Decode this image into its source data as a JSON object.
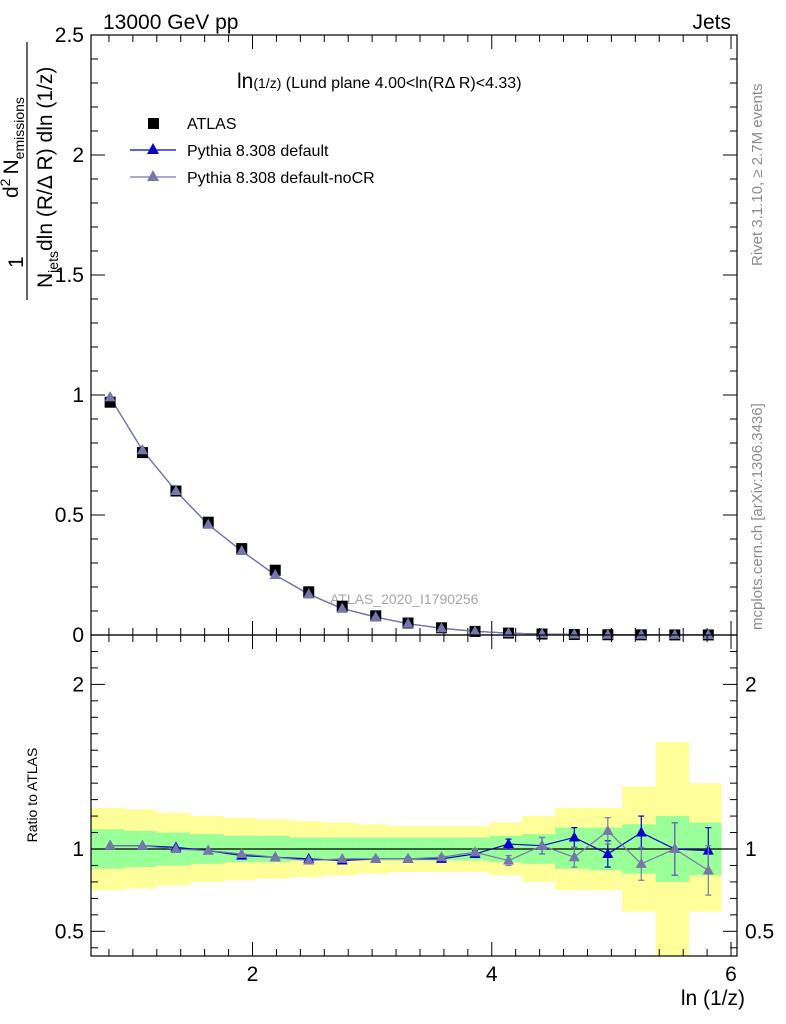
{
  "header": {
    "left": "13000 GeV pp",
    "right": "Jets"
  },
  "plot_title": {
    "main": "ln",
    "sub": "(1/z)",
    "rest": " (Lund plane 4.00<ln(RΔ R)<4.33)"
  },
  "watermark": "ATLAS_2020_I1790256",
  "side_texts": {
    "top": "Rivet 3.1.10, ≥ 2.7M events",
    "bottom": "mcplots.cern.ch [arXiv:1306.3436]"
  },
  "ylabel_main": {
    "one": "1",
    "njets": "N",
    "njets_sub": "jets",
    "denom": "dln (R/Δ R) dln (1/z)",
    "d2": "d",
    "d2_sup": "2",
    "numer": "N",
    "numer_sub": "emissions"
  },
  "ylabel_ratio": "Ratio to ATLAS",
  "xlabel": "ln (1/z)",
  "legend": [
    {
      "label": "ATLAS",
      "marker": "square",
      "color": "#000000"
    },
    {
      "label": "Pythia 8.308 default",
      "marker": "triangle",
      "color": "#0000cc"
    },
    {
      "label": "Pythia 8.308 default-noCR",
      "marker": "triangle",
      "color": "#7777aa"
    }
  ],
  "chart_data": {
    "type": "scatter",
    "x": [
      0.81,
      1.08,
      1.36,
      1.63,
      1.91,
      2.19,
      2.47,
      2.75,
      3.03,
      3.3,
      3.58,
      3.86,
      4.14,
      4.42,
      4.69,
      4.97,
      5.25,
      5.53,
      5.81
    ],
    "x_ticks": [
      2,
      4,
      6
    ],
    "xlim": [
      0.65,
      6.05
    ],
    "main": {
      "ylim": [
        0,
        2.5
      ],
      "y_ticks": [
        0,
        0.5,
        1,
        1.5,
        2,
        2.5
      ],
      "y_tick_labels": [
        "0",
        "0.5",
        "1",
        "1.5",
        "2",
        "2.5"
      ],
      "series": [
        {
          "name": "ATLAS",
          "values": [
            0.97,
            0.76,
            0.6,
            0.47,
            0.36,
            0.27,
            0.18,
            0.12,
            0.08,
            0.05,
            0.03,
            0.015,
            0.008,
            0.004,
            0.002,
            0.001,
            0.0006,
            0.0003,
            0.0002
          ]
        },
        {
          "name": "Pythia 8.308 default",
          "values": [
            0.99,
            0.77,
            0.6,
            0.46,
            0.35,
            0.25,
            0.17,
            0.11,
            0.075,
            0.047,
            0.028,
            0.015,
            0.008,
            0.004,
            0.002,
            0.001,
            0.0006,
            0.0003,
            0.0002
          ]
        },
        {
          "name": "Pythia 8.308 default-noCR",
          "values": [
            0.99,
            0.77,
            0.6,
            0.46,
            0.35,
            0.25,
            0.17,
            0.11,
            0.075,
            0.047,
            0.028,
            0.015,
            0.008,
            0.004,
            0.002,
            0.001,
            0.0006,
            0.0003,
            0.0002
          ]
        }
      ]
    },
    "ratio": {
      "ylim": [
        0.35,
        2.3
      ],
      "y_ticks": [
        0.5,
        1,
        2
      ],
      "y_tick_labels": [
        "0.5",
        "1",
        "2"
      ],
      "bin_edges": [
        0.65,
        0.93,
        1.2,
        1.48,
        1.76,
        2.03,
        2.31,
        2.59,
        2.87,
        3.14,
        3.42,
        3.7,
        3.98,
        4.25,
        4.53,
        4.81,
        5.09,
        5.37,
        5.65,
        5.92
      ],
      "band_inner": [
        [
          0.88,
          1.12
        ],
        [
          0.89,
          1.11
        ],
        [
          0.9,
          1.1
        ],
        [
          0.91,
          1.09
        ],
        [
          0.92,
          1.08
        ],
        [
          0.92,
          1.08
        ],
        [
          0.93,
          1.07
        ],
        [
          0.93,
          1.07
        ],
        [
          0.93,
          1.07
        ],
        [
          0.93,
          1.07
        ],
        [
          0.93,
          1.07
        ],
        [
          0.93,
          1.07
        ],
        [
          0.92,
          1.08
        ],
        [
          0.91,
          1.09
        ],
        [
          0.88,
          1.13
        ],
        [
          0.87,
          1.13
        ],
        [
          0.85,
          1.15
        ],
        [
          0.8,
          1.2
        ],
        [
          0.84,
          1.16
        ]
      ],
      "band_outer": [
        [
          0.75,
          1.25
        ],
        [
          0.76,
          1.24
        ],
        [
          0.78,
          1.22
        ],
        [
          0.8,
          1.2
        ],
        [
          0.81,
          1.19
        ],
        [
          0.82,
          1.18
        ],
        [
          0.83,
          1.17
        ],
        [
          0.84,
          1.16
        ],
        [
          0.85,
          1.15
        ],
        [
          0.86,
          1.14
        ],
        [
          0.86,
          1.14
        ],
        [
          0.86,
          1.14
        ],
        [
          0.84,
          1.16
        ],
        [
          0.8,
          1.2
        ],
        [
          0.75,
          1.25
        ],
        [
          0.75,
          1.25
        ],
        [
          0.62,
          1.38
        ],
        [
          0.35,
          1.65
        ],
        [
          0.62,
          1.4
        ]
      ],
      "series": [
        {
          "name": "Pythia 8.308 default",
          "values": [
            1.02,
            1.02,
            1.01,
            0.99,
            0.96,
            0.95,
            0.94,
            0.93,
            0.94,
            0.94,
            0.94,
            0.97,
            1.03,
            1.02,
            1.07,
            0.97,
            1.1,
            1.0,
            0.99
          ],
          "errors": [
            0.005,
            0.005,
            0.005,
            0.005,
            0.005,
            0.005,
            0.005,
            0.005,
            0.01,
            0.01,
            0.01,
            0.02,
            0.03,
            0.05,
            0.06,
            0.08,
            0.1,
            0.16,
            0.14
          ]
        },
        {
          "name": "Pythia 8.308 default-noCR",
          "values": [
            1.02,
            1.02,
            1.0,
            0.99,
            0.97,
            0.95,
            0.93,
            0.94,
            0.94,
            0.94,
            0.95,
            0.98,
            0.93,
            1.02,
            0.95,
            1.11,
            0.91,
            1.0,
            0.87
          ],
          "errors": [
            0.005,
            0.005,
            0.005,
            0.005,
            0.005,
            0.005,
            0.005,
            0.005,
            0.01,
            0.01,
            0.01,
            0.02,
            0.03,
            0.05,
            0.06,
            0.08,
            0.1,
            0.16,
            0.15
          ]
        }
      ]
    }
  }
}
